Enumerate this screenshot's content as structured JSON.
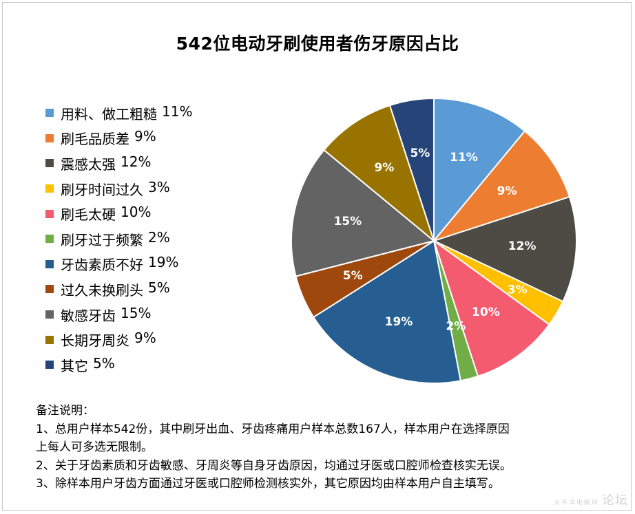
{
  "chart_data": {
    "type": "pie",
    "title": "542位电动牙刷使用者伤牙原因占比",
    "legend_position": "left",
    "categories": [
      "用料、做工粗糙",
      "刷毛品质差",
      "震感太强",
      "刷牙时间过久",
      "刷毛太硬",
      "刷牙过于频繁",
      "牙齿素质不好",
      "过久未换刷头",
      "敏感牙齿",
      "长期牙周炎",
      "其它"
    ],
    "values": [
      11,
      9,
      12,
      3,
      10,
      2,
      19,
      5,
      15,
      9,
      5
    ],
    "value_labels": [
      "11%",
      "9%",
      "12%",
      "3%",
      "10%",
      "2%",
      "19%",
      "5%",
      "15%",
      "9%",
      "5%"
    ],
    "colors": [
      "#5b9bd5",
      "#ed7d31",
      "#4d4b44",
      "#ffc000",
      "#f45b6e",
      "#70ad47",
      "#265e91",
      "#9e480e",
      "#636363",
      "#997300",
      "#264478"
    ]
  },
  "notes": {
    "heading": "备注说明：",
    "lines": [
      "1、总用户样本542份，其中刷牙出血、牙齿疼痛用户样本总数167人，样本用户在选择原因",
      "上每人可多选无限制。",
      "2、关于牙齿素质和牙齿敏感、牙周炎等自身牙齿原因，均通过牙医或口腔师检查核实无误。",
      "3、除样本用户牙齿方面通过牙医或口腔师检测核实外，其它原因均由样本用户自主填写。"
    ]
  },
  "watermark": {
    "main": "论坛",
    "sub": "太平洋电脑网"
  }
}
